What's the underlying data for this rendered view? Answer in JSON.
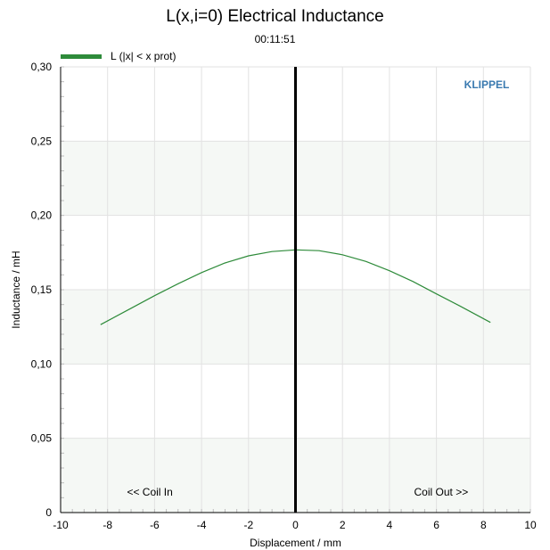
{
  "chart_data": {
    "type": "line",
    "title": "L(x,i=0) Electrical Inductance",
    "subtitle": "00:11:51",
    "xlabel": "Displacement / mm",
    "ylabel": "Inductance / mH",
    "xlim": [
      -10,
      10
    ],
    "ylim": [
      0,
      0.3
    ],
    "x_ticks": [
      -10,
      -8,
      -6,
      -4,
      -2,
      0,
      2,
      4,
      6,
      8,
      10
    ],
    "x_tick_labels": [
      "-10",
      "-8",
      "-6",
      "-4",
      "-2",
      "0",
      "2",
      "4",
      "6",
      "8",
      "10"
    ],
    "y_ticks": [
      0,
      0.05,
      0.1,
      0.15,
      0.2,
      0.25,
      0.3
    ],
    "y_tick_labels": [
      "0",
      "0,05",
      "0,10",
      "0,15",
      "0,20",
      "0,25",
      "0,30"
    ],
    "grid": true,
    "legend_position": "top-left",
    "series": [
      {
        "name": "L (|x| < x prot)",
        "color": "#2e8b3a",
        "x": [
          -8.3,
          -7,
          -6,
          -5,
          -4,
          -3,
          -2,
          -1,
          0,
          1,
          2,
          3,
          4,
          5,
          6,
          7,
          8.3
        ],
        "y": [
          0.1265,
          0.1375,
          0.146,
          0.154,
          0.1615,
          0.168,
          0.1728,
          0.1757,
          0.1768,
          0.1763,
          0.1735,
          0.169,
          0.1628,
          0.1555,
          0.1472,
          0.139,
          0.128
        ]
      }
    ],
    "vertical_line": {
      "x": 0,
      "color": "#000000"
    },
    "annotations": {
      "left": "<< Coil In",
      "right": "Coil Out >>",
      "brand": "KLIPPEL"
    },
    "colors": {
      "brand": "#3a7ab0",
      "band": "#f5f8f5",
      "grid": "#e2e2e2"
    }
  }
}
